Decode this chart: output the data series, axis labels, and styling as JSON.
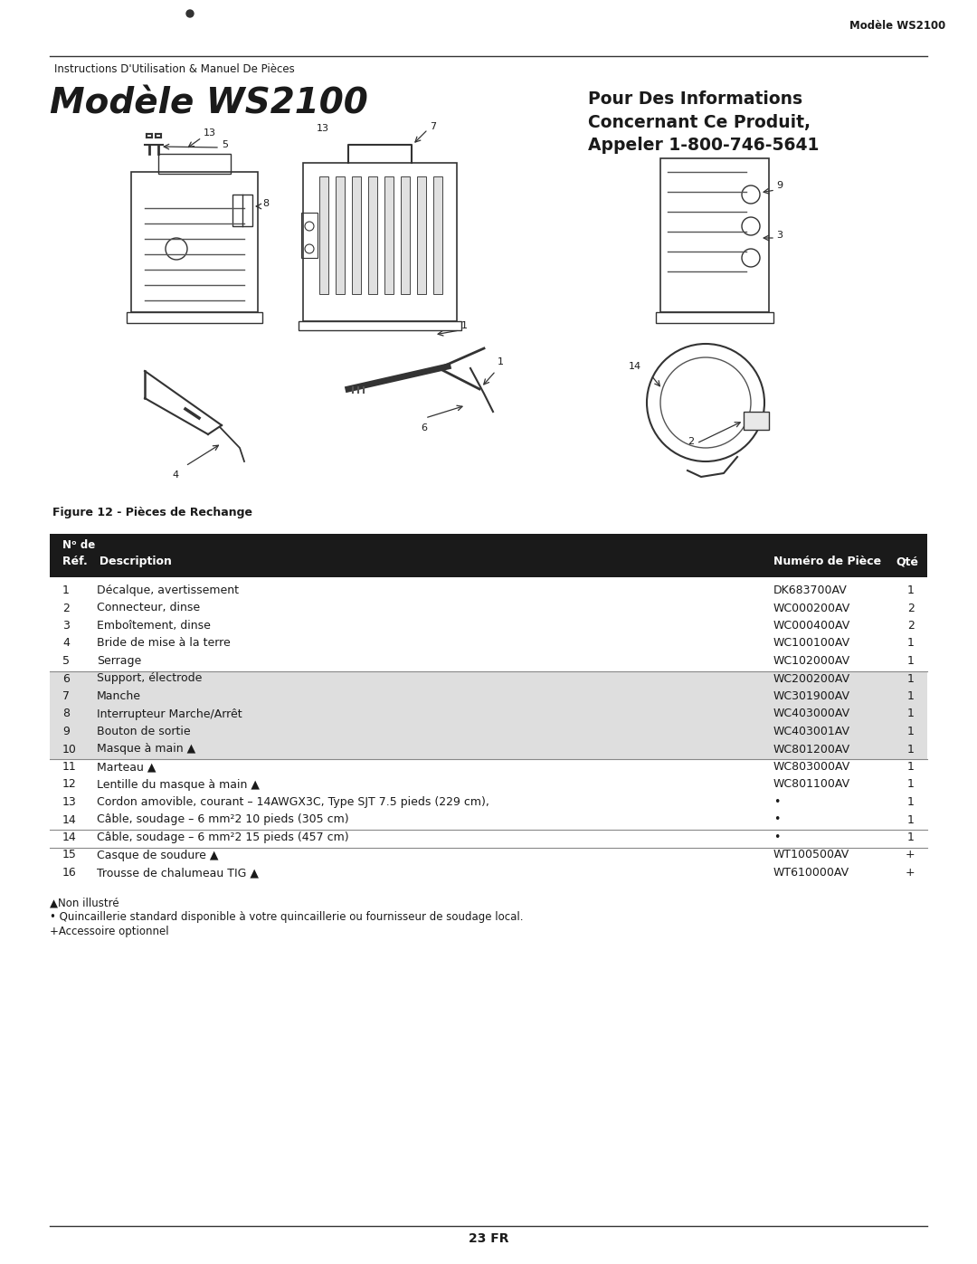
{
  "page_title_top_right": "Modèle WS2100",
  "header_instruction": "Instructions D'Utilisation & Manuel De Pièces",
  "main_title": "Modèle WS2100",
  "info_title": "Pour Des Informations\nConcernant Ce Produit,\nAppeler 1-800-746-5641",
  "figure_caption": "Figure 12 - Pièces de Rechange",
  "table_rows": [
    {
      "num": "1",
      "desc": "Décalque, avertissement",
      "part": "DK683700AV",
      "qty": "1",
      "shade": false,
      "line_above": false
    },
    {
      "num": "2",
      "desc": "Connecteur, dinse",
      "part": "WC000200AV",
      "qty": "2",
      "shade": false,
      "line_above": false
    },
    {
      "num": "3",
      "desc": "Emboîtement, dinse",
      "part": "WC000400AV",
      "qty": "2",
      "shade": false,
      "line_above": false
    },
    {
      "num": "4",
      "desc": "Bride de mise à la terre",
      "part": "WC100100AV",
      "qty": "1",
      "shade": false,
      "line_above": false
    },
    {
      "num": "5",
      "desc": "Serrage",
      "part": "WC102000AV",
      "qty": "1",
      "shade": false,
      "line_above": false
    },
    {
      "num": "6",
      "desc": "Support, électrode",
      "part": "WC200200AV",
      "qty": "1",
      "shade": true,
      "line_above": true
    },
    {
      "num": "7",
      "desc": "Manche",
      "part": "WC301900AV",
      "qty": "1",
      "shade": true,
      "line_above": false
    },
    {
      "num": "8",
      "desc": "Interrupteur Marche/Arrêt",
      "part": "WC403000AV",
      "qty": "1",
      "shade": true,
      "line_above": false
    },
    {
      "num": "9",
      "desc": "Bouton de sortie",
      "part": "WC403001AV",
      "qty": "1",
      "shade": true,
      "line_above": false
    },
    {
      "num": "10",
      "desc": "Masque à main ▲",
      "part": "WC801200AV",
      "qty": "1",
      "shade": true,
      "line_above": false
    },
    {
      "num": "11",
      "desc": "Marteau ▲",
      "part": "WC803000AV",
      "qty": "1",
      "shade": false,
      "line_above": true
    },
    {
      "num": "12",
      "desc": "Lentille du masque à main ▲",
      "part": "WC801100AV",
      "qty": "1",
      "shade": false,
      "line_above": false
    },
    {
      "num": "13",
      "desc": "Cordon amovible, courant – 14AWGX3C, Type SJT 7.5 pieds (229 cm),",
      "part": "•",
      "qty": "1",
      "shade": false,
      "line_above": false
    },
    {
      "num": "14",
      "desc": "Câble, soudage – 6 mm²2 10 pieds (305 cm)",
      "part": "•",
      "qty": "1",
      "shade": false,
      "line_above": false
    },
    {
      "num": "14",
      "desc": "Câble, soudage – 6 mm²2 15 pieds (457 cm)",
      "part": "•",
      "qty": "1",
      "shade": false,
      "line_above": true
    },
    {
      "num": "15",
      "desc": "Casque de soudure ▲",
      "part": "WT100500AV",
      "qty": "+",
      "shade": false,
      "line_above": true
    },
    {
      "num": "16",
      "desc": "Trousse de chalumeau TIG ▲",
      "part": "WT610000AV",
      "qty": "+",
      "shade": false,
      "line_above": false
    }
  ],
  "footnote1": "▲Non illustré",
  "footnote2": "• Quincaillerie standard disponible à votre quincaillerie ou fournisseur de soudage local.",
  "footnote3": "+Accessoire optionnel",
  "footer_text": "23 FR",
  "bg_color": "#ffffff",
  "header_bg": "#1a1a1a",
  "text_color": "#1a1a1a",
  "divider_color": "#333333",
  "line_color": "#888888"
}
